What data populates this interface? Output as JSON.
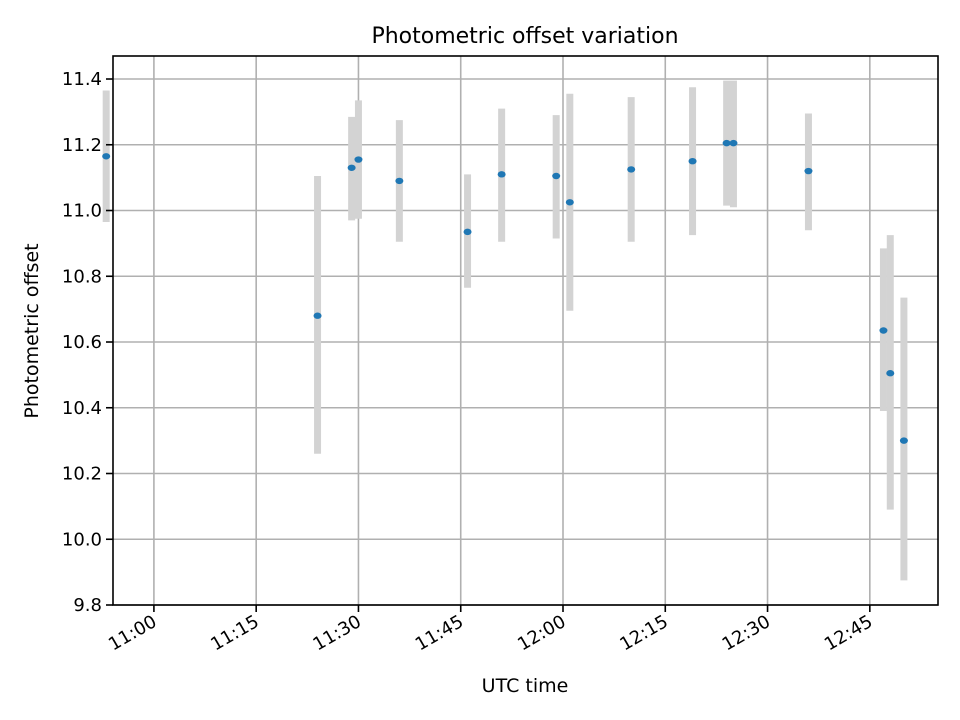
{
  "chart_data": {
    "type": "scatter",
    "title": "Photometric offset variation",
    "xlabel": "UTC time",
    "ylabel": "Photometric offset",
    "grid": true,
    "x_axis": {
      "kind": "time",
      "range": [
        "10:54",
        "12:55"
      ],
      "ticks": [
        "11:00",
        "11:15",
        "11:30",
        "11:45",
        "12:00",
        "12:15",
        "12:30",
        "12:45"
      ],
      "tick_label_rotation": 30
    },
    "y_axis": {
      "range": [
        9.8,
        11.47
      ],
      "ticks": [
        9.8,
        10.0,
        10.2,
        10.4,
        10.6,
        10.8,
        11.0,
        11.2,
        11.4
      ],
      "tick_labels": [
        "9.8",
        "10.0",
        "10.2",
        "10.4",
        "10.6",
        "10.8",
        "11.0",
        "11.2",
        "11.4"
      ]
    },
    "colors": {
      "point": "#1f77b4",
      "errorbar": "#d3d3d3",
      "grid": "#b0b0b0"
    },
    "points": [
      {
        "x": "10:53",
        "y": 11.165,
        "ylow": 10.965,
        "yhigh": 11.365
      },
      {
        "x": "11:24",
        "y": 10.68,
        "ylow": 10.26,
        "yhigh": 11.105
      },
      {
        "x": "11:29",
        "y": 11.13,
        "ylow": 10.97,
        "yhigh": 11.285
      },
      {
        "x": "11:30",
        "y": 11.155,
        "ylow": 10.975,
        "yhigh": 11.335
      },
      {
        "x": "11:36",
        "y": 11.09,
        "ylow": 10.905,
        "yhigh": 11.275
      },
      {
        "x": "11:46",
        "y": 10.935,
        "ylow": 10.765,
        "yhigh": 11.11
      },
      {
        "x": "11:51",
        "y": 11.11,
        "ylow": 10.905,
        "yhigh": 11.31
      },
      {
        "x": "11:59",
        "y": 11.105,
        "ylow": 10.915,
        "yhigh": 11.29
      },
      {
        "x": "12:01",
        "y": 11.025,
        "ylow": 10.695,
        "yhigh": 11.355
      },
      {
        "x": "12:10",
        "y": 11.125,
        "ylow": 10.905,
        "yhigh": 11.345
      },
      {
        "x": "12:19",
        "y": 11.15,
        "ylow": 10.925,
        "yhigh": 11.375
      },
      {
        "x": "12:24",
        "y": 11.205,
        "ylow": 11.015,
        "yhigh": 11.395
      },
      {
        "x": "12:25",
        "y": 11.205,
        "ylow": 11.01,
        "yhigh": 11.395
      },
      {
        "x": "12:36",
        "y": 11.12,
        "ylow": 10.94,
        "yhigh": 11.295
      },
      {
        "x": "12:47",
        "y": 10.635,
        "ylow": 10.39,
        "yhigh": 10.885
      },
      {
        "x": "12:48",
        "y": 10.505,
        "ylow": 10.09,
        "yhigh": 10.925
      },
      {
        "x": "12:50",
        "y": 10.3,
        "ylow": 9.875,
        "yhigh": 10.735
      }
    ]
  }
}
